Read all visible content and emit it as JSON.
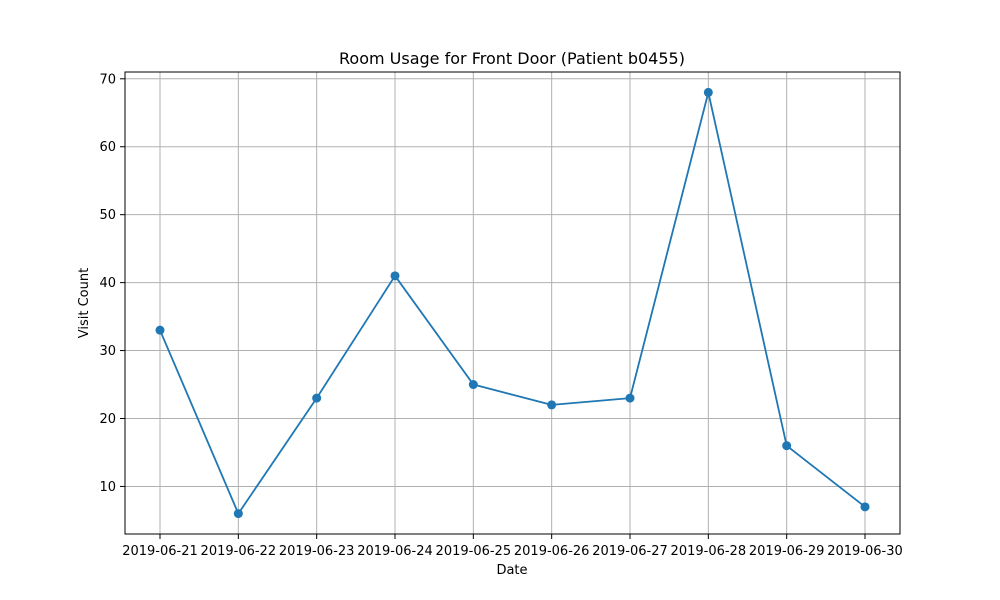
{
  "chart_data": {
    "type": "line",
    "title": "Room Usage for Front Door (Patient b0455)",
    "xlabel": "Date",
    "ylabel": "Visit Count",
    "categories": [
      "2019-06-21",
      "2019-06-22",
      "2019-06-23",
      "2019-06-24",
      "2019-06-25",
      "2019-06-26",
      "2019-06-27",
      "2019-06-28",
      "2019-06-29",
      "2019-06-30"
    ],
    "series": [
      {
        "values": [
          33,
          6,
          23,
          41,
          25,
          22,
          23,
          68,
          16,
          7
        ]
      }
    ],
    "yticks": [
      10,
      20,
      30,
      40,
      50,
      60,
      70
    ],
    "ylim": [
      3,
      71
    ],
    "grid": true,
    "legend": "none",
    "colors": {
      "line": "#1f77b4",
      "marker": "#1f77b4",
      "grid": "#b0b0b0"
    }
  }
}
